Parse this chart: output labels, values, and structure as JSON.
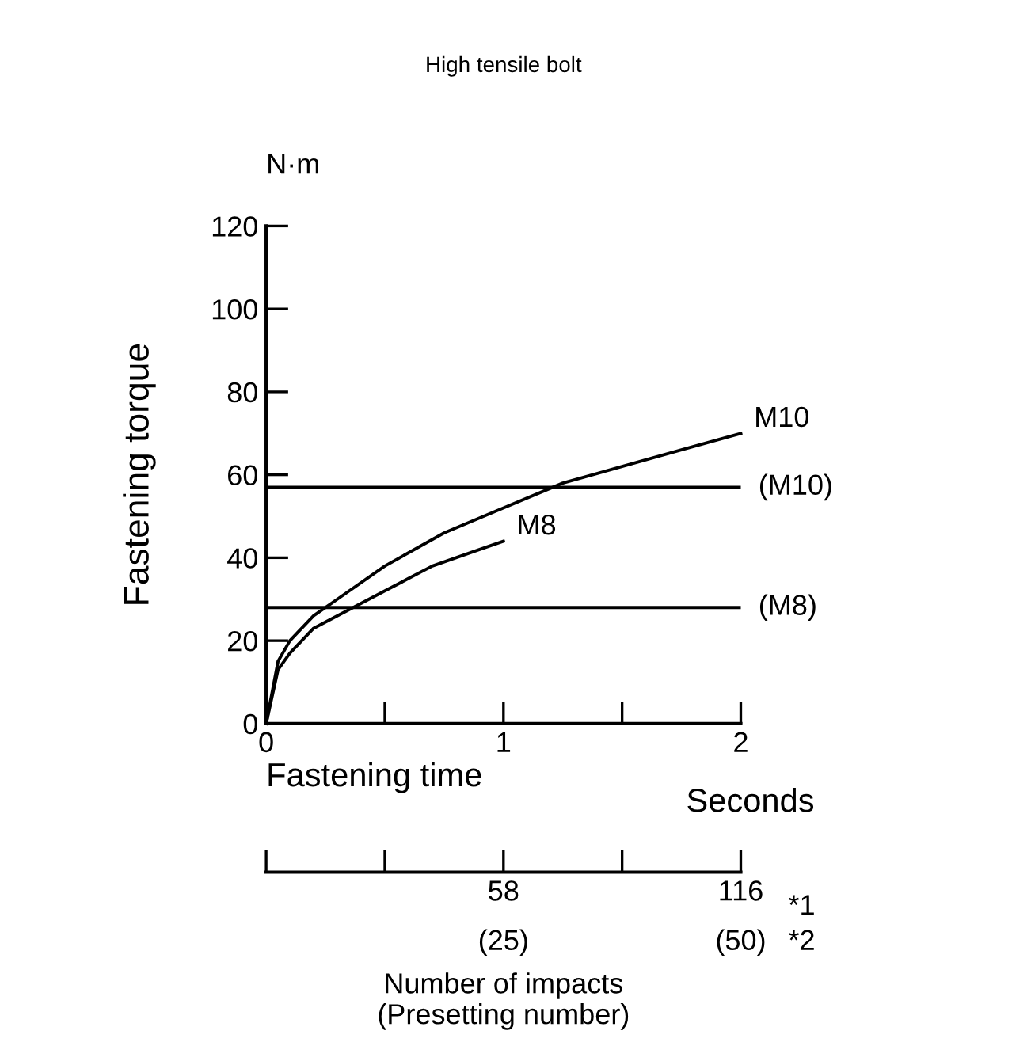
{
  "chart_data": {
    "type": "line",
    "title": "High tensile bolt",
    "xlabel": "Fastening time",
    "ylabel": "Fastening torque",
    "x2label": "Number of impacts\n(Presetting number)",
    "annotations": [
      "N·m",
      "Seconds",
      "*1",
      "*2",
      "(25)",
      "(50)"
    ],
    "xlim": [
      0,
      2
    ],
    "xticks": [
      0,
      {
        "value": 0.5,
        "label": null
      },
      1,
      {
        "value": 1.5,
        "label": null
      },
      2
    ],
    "ylim": [
      0,
      120
    ],
    "yticks": [
      0,
      20,
      40,
      60,
      80,
      100,
      120
    ],
    "x2lim": [
      0,
      116
    ],
    "x2ticks": [
      {
        "value": 0,
        "label": null
      },
      {
        "value": 29,
        "label": null
      },
      58,
      {
        "value": 87,
        "label": null
      },
      116
    ],
    "series": [
      {
        "name": "M10",
        "color": "#000000",
        "x": [
          0,
          0.05,
          0.1,
          0.2,
          0.3,
          0.5,
          0.75,
          1,
          1.25,
          1.5,
          1.75,
          2
        ],
        "values": [
          0,
          15,
          20,
          26,
          30,
          38,
          46,
          52,
          58,
          62,
          66,
          70
        ]
      },
      {
        "name": "M8",
        "color": "#000000",
        "x": [
          0,
          0.05,
          0.1,
          0.2,
          0.3,
          0.4,
          0.5,
          0.6,
          0.7,
          0.8,
          0.9,
          1
        ],
        "values": [
          0,
          13,
          17,
          23,
          26,
          29,
          32,
          35,
          38,
          40,
          42,
          44
        ]
      }
    ],
    "ref_lines": [
      {
        "axis": "y",
        "value": 57,
        "label": "(M10)",
        "color": "#000000"
      },
      {
        "axis": "y",
        "value": 28,
        "label": "(M8)",
        "color": "#000000"
      }
    ],
    "grid": false,
    "legend": false,
    "marker": "none",
    "line_style": "solid"
  }
}
